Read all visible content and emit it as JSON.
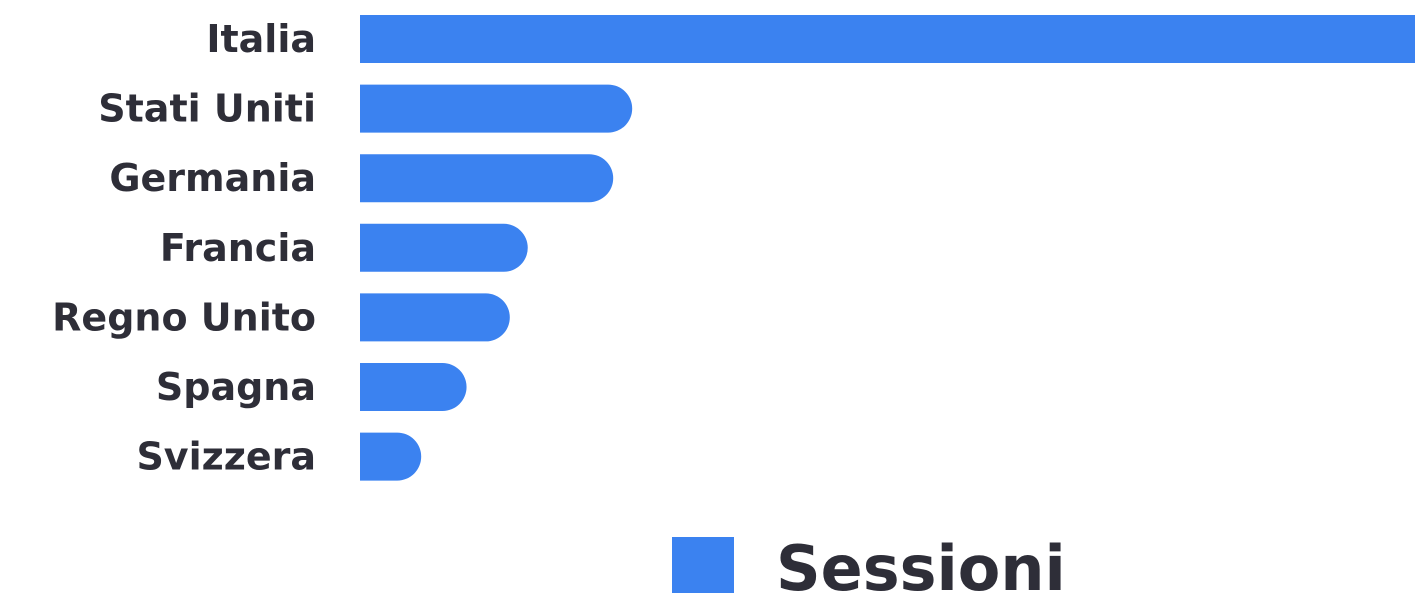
{
  "chart_data": {
    "type": "bar",
    "orientation": "horizontal",
    "categories": [
      "Italia",
      "Stati Uniti",
      "Germania",
      "Francia",
      "Regno Unito",
      "Spagna",
      "Svizzera"
    ],
    "series": [
      {
        "name": "Sessioni",
        "values": [
          100,
          25.8,
          24,
          15.9,
          14.2,
          10.1,
          5.8
        ],
        "color": "#3b82f0"
      }
    ],
    "xlim": [
      0,
      100
    ],
    "grid": false,
    "legend": "bottom-center"
  }
}
